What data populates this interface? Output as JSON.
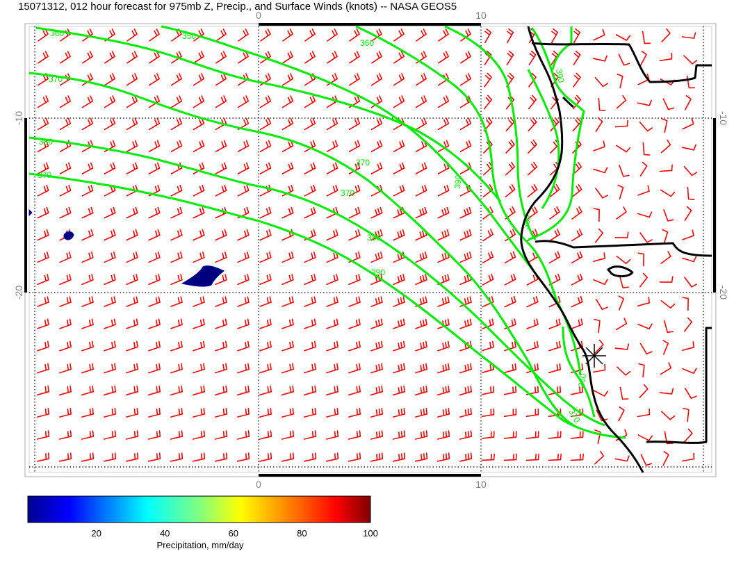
{
  "title": "15071312, 012 hour forecast for 975mb Z, Precip., and Surface Winds (knots) -- NASA GEOS5",
  "axes": {
    "x_ticks": [
      "0",
      "10"
    ],
    "y_ticks": [
      "-10",
      "-20"
    ]
  },
  "contours": {
    "labels": [
      "360",
      "350",
      "370",
      "380",
      "370",
      "360",
      "390",
      "370",
      "380",
      "390",
      "370",
      "390",
      "380",
      "360",
      "370"
    ]
  },
  "colorbar": {
    "label": "Precipitation, mm/day",
    "ticks": [
      "20",
      "40",
      "60",
      "80",
      "100"
    ],
    "range": [
      0,
      100
    ]
  },
  "colors": {
    "wind_barbs": "#ff0000",
    "contours": "#00ee00",
    "coastline": "#000000",
    "precip": "#000080",
    "grid": "#000000",
    "frame": "#aaaaaa"
  },
  "icons": {
    "marker": "asterisk-marker-icon"
  }
}
